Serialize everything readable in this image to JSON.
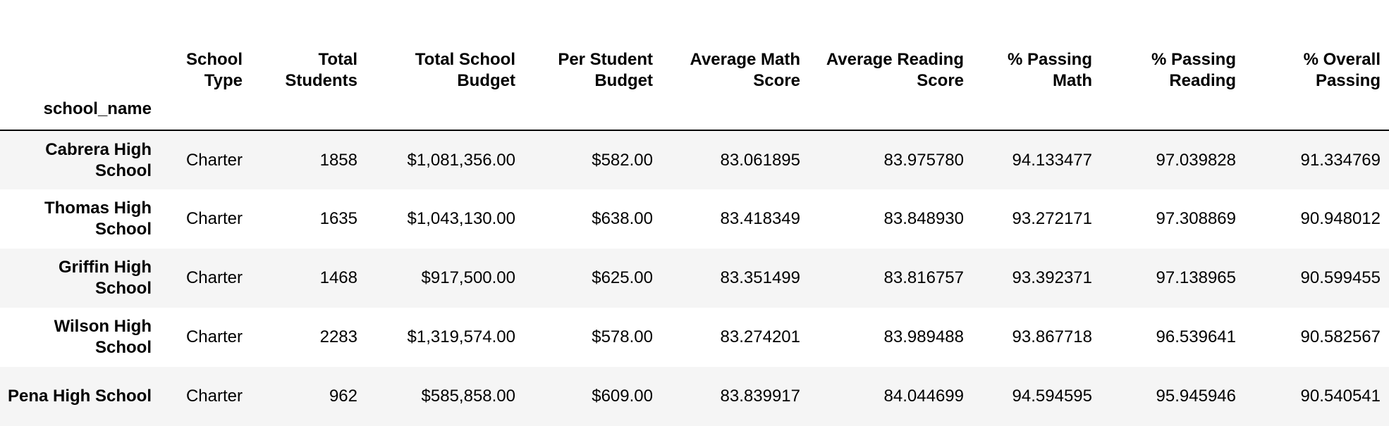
{
  "table": {
    "index_name": "school_name",
    "columns": [
      "School Type",
      "Total Students",
      "Total School Budget",
      "Per Student Budget",
      "Average Math Score",
      "Average Reading Score",
      "% Passing Math",
      "% Passing Reading",
      "% Overall Passing"
    ],
    "rows": [
      {
        "name": "Cabrera High School",
        "cells": [
          "Charter",
          "1858",
          "$1,081,356.00",
          "$582.00",
          "83.061895",
          "83.975780",
          "94.133477",
          "97.039828",
          "91.334769"
        ]
      },
      {
        "name": "Thomas High School",
        "cells": [
          "Charter",
          "1635",
          "$1,043,130.00",
          "$638.00",
          "83.418349",
          "83.848930",
          "93.272171",
          "97.308869",
          "90.948012"
        ]
      },
      {
        "name": "Griffin High School",
        "cells": [
          "Charter",
          "1468",
          "$917,500.00",
          "$625.00",
          "83.351499",
          "83.816757",
          "93.392371",
          "97.138965",
          "90.599455"
        ]
      },
      {
        "name": "Wilson High School",
        "cells": [
          "Charter",
          "2283",
          "$1,319,574.00",
          "$578.00",
          "83.274201",
          "83.989488",
          "93.867718",
          "96.539641",
          "90.582567"
        ]
      },
      {
        "name": "Pena High School",
        "cells": [
          "Charter",
          "962",
          "$585,858.00",
          "$609.00",
          "83.839917",
          "84.044699",
          "94.594595",
          "95.945946",
          "90.540541"
        ]
      }
    ]
  }
}
